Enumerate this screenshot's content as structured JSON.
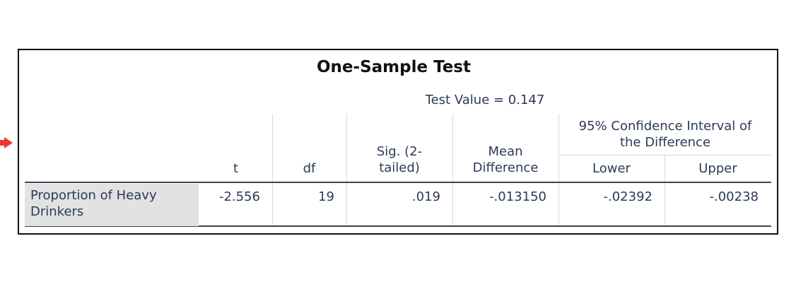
{
  "table": {
    "title": "One-Sample Test",
    "test_value": "Test Value = 0.147",
    "ci_header_line1": "95% Confidence Interval of",
    "ci_header_line2": "the Difference",
    "columns": {
      "t": "t",
      "df": "df",
      "sig_line1": "Sig. (2-",
      "sig_line2": "tailed)",
      "mean_line1": "Mean",
      "mean_line2": "Difference",
      "lower": "Lower",
      "upper": "Upper"
    },
    "row": {
      "label_line1": "Proportion of Heavy",
      "label_line2": "Drinkers",
      "t": "-2.556",
      "df": "19",
      "sig": ".019",
      "mean_diff": "-.013150",
      "lower": "-.02392",
      "upper": "-.00238"
    }
  }
}
